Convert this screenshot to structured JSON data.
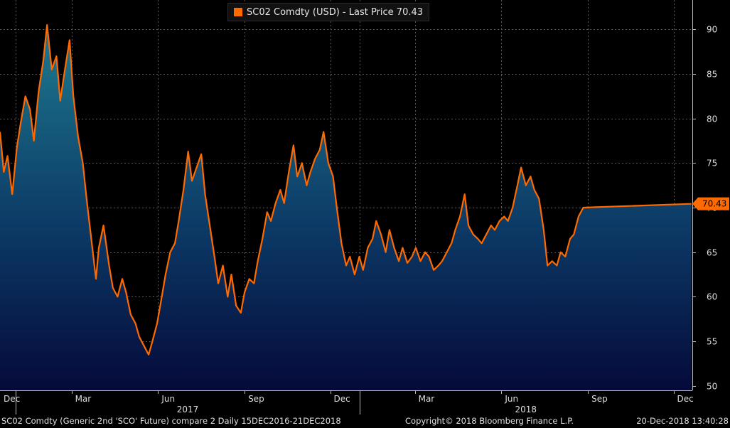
{
  "legend": {
    "label": "SC02 Comdty (USD)  -  Last Price 70.43",
    "color": "#ff6a00"
  },
  "last_price_tag": "70.43",
  "footer": {
    "left": "SC02 Comdty (Generic 2nd 'SCO' Future) compare 2  Daily 15DEC2016-21DEC2018",
    "center": "Copyright© 2018 Bloomberg Finance L.P.",
    "right": "20-Dec-2018 13:40:28"
  },
  "chart_data": {
    "type": "area",
    "title": "",
    "xlabel": "",
    "ylabel": "",
    "ylim": [
      49.5,
      93.3
    ],
    "yticks": [
      50,
      55,
      60,
      65,
      70,
      75,
      80,
      85,
      90
    ],
    "y_axis_side": "right",
    "grid": true,
    "x_tick_labels": [
      "Dec",
      "Mar",
      "Jun",
      "Sep",
      "Dec",
      "Mar",
      "Jun",
      "Sep",
      "Dec"
    ],
    "x_year_labels": [
      "2017",
      "2018"
    ],
    "x_range": [
      "2016-12-15",
      "2018-12-21"
    ],
    "series": [
      {
        "name": "SC02 Comdty (USD)",
        "line_color": "#ff6a00",
        "fill_top_color": "#1e7a90",
        "fill_bottom_color": "#050a3a",
        "points": [
          [
            "2016-12-15",
            78.5
          ],
          [
            "2016-12-19",
            74.0
          ],
          [
            "2016-12-23",
            75.8
          ],
          [
            "2016-12-28",
            71.5
          ],
          [
            "2017-01-02",
            76.8
          ],
          [
            "2017-01-06",
            79.5
          ],
          [
            "2017-01-11",
            82.5
          ],
          [
            "2017-01-16",
            81.0
          ],
          [
            "2017-01-20",
            77.5
          ],
          [
            "2017-01-25",
            83.0
          ],
          [
            "2017-01-30",
            86.5
          ],
          [
            "2017-02-03",
            90.5
          ],
          [
            "2017-02-08",
            85.5
          ],
          [
            "2017-02-13",
            87.0
          ],
          [
            "2017-02-17",
            82.0
          ],
          [
            "2017-02-22",
            85.5
          ],
          [
            "2017-02-27",
            88.8
          ],
          [
            "2017-03-03",
            82.5
          ],
          [
            "2017-03-08",
            78.0
          ],
          [
            "2017-03-13",
            75.0
          ],
          [
            "2017-03-17",
            71.0
          ],
          [
            "2017-03-22",
            66.5
          ],
          [
            "2017-03-27",
            62.0
          ],
          [
            "2017-03-30",
            65.5
          ],
          [
            "2017-04-04",
            68.0
          ],
          [
            "2017-04-10",
            63.5
          ],
          [
            "2017-04-14",
            61.0
          ],
          [
            "2017-04-19",
            60.0
          ],
          [
            "2017-04-24",
            62.0
          ],
          [
            "2017-04-28",
            60.5
          ],
          [
            "2017-05-03",
            58.0
          ],
          [
            "2017-05-08",
            57.0
          ],
          [
            "2017-05-12",
            55.5
          ],
          [
            "2017-05-17",
            54.5
          ],
          [
            "2017-05-22",
            53.5
          ],
          [
            "2017-05-26",
            55.0
          ],
          [
            "2017-05-31",
            57.0
          ],
          [
            "2017-06-05",
            60.0
          ],
          [
            "2017-06-09",
            62.5
          ],
          [
            "2017-06-14",
            65.0
          ],
          [
            "2017-06-19",
            66.0
          ],
          [
            "2017-06-23",
            68.5
          ],
          [
            "2017-06-28",
            72.0
          ],
          [
            "2017-07-03",
            76.3
          ],
          [
            "2017-07-07",
            73.0
          ],
          [
            "2017-07-12",
            74.5
          ],
          [
            "2017-07-17",
            76.0
          ],
          [
            "2017-07-21",
            71.5
          ],
          [
            "2017-07-26",
            68.0
          ],
          [
            "2017-07-31",
            64.5
          ],
          [
            "2017-08-04",
            61.5
          ],
          [
            "2017-08-09",
            63.5
          ],
          [
            "2017-08-14",
            60.0
          ],
          [
            "2017-08-18",
            62.5
          ],
          [
            "2017-08-23",
            59.0
          ],
          [
            "2017-08-28",
            58.2
          ],
          [
            "2017-09-01",
            60.5
          ],
          [
            "2017-09-06",
            62.0
          ],
          [
            "2017-09-11",
            61.5
          ],
          [
            "2017-09-15",
            64.0
          ],
          [
            "2017-09-20",
            66.5
          ],
          [
            "2017-09-25",
            69.5
          ],
          [
            "2017-09-29",
            68.5
          ],
          [
            "2017-10-04",
            70.5
          ],
          [
            "2017-10-09",
            72.0
          ],
          [
            "2017-10-13",
            70.5
          ],
          [
            "2017-10-18",
            74.0
          ],
          [
            "2017-10-23",
            77.0
          ],
          [
            "2017-10-27",
            73.5
          ],
          [
            "2017-11-01",
            75.0
          ],
          [
            "2017-11-06",
            72.5
          ],
          [
            "2017-11-10",
            74.0
          ],
          [
            "2017-11-15",
            75.5
          ],
          [
            "2017-11-20",
            76.5
          ],
          [
            "2017-11-24",
            78.5
          ],
          [
            "2017-11-29",
            75.0
          ],
          [
            "2017-12-04",
            73.5
          ],
          [
            "2017-12-08",
            70.0
          ],
          [
            "2017-12-13",
            66.0
          ],
          [
            "2017-12-18",
            63.5
          ],
          [
            "2017-12-22",
            64.5
          ],
          [
            "2017-12-27",
            62.5
          ],
          [
            "2018-01-01",
            64.5
          ],
          [
            "2018-01-05",
            63.0
          ],
          [
            "2018-01-10",
            65.5
          ],
          [
            "2018-01-15",
            66.5
          ],
          [
            "2018-01-19",
            68.5
          ],
          [
            "2018-01-24",
            67.0
          ],
          [
            "2018-01-29",
            65.0
          ],
          [
            "2018-02-02",
            67.5
          ],
          [
            "2018-02-07",
            65.5
          ],
          [
            "2018-02-12",
            64.0
          ],
          [
            "2018-02-16",
            65.5
          ],
          [
            "2018-02-21",
            63.8
          ],
          [
            "2018-02-26",
            64.5
          ],
          [
            "2018-03-02",
            65.5
          ],
          [
            "2018-03-07",
            64.0
          ],
          [
            "2018-03-12",
            65.0
          ],
          [
            "2018-03-16",
            64.5
          ],
          [
            "2018-03-21",
            63.0
          ],
          [
            "2018-03-26",
            63.5
          ],
          [
            "2018-03-30",
            64.0
          ],
          [
            "2018-04-04",
            65.0
          ],
          [
            "2018-04-09",
            66.0
          ],
          [
            "2018-04-13",
            67.5
          ],
          [
            "2018-04-18",
            69.0
          ],
          [
            "2018-04-23",
            71.5
          ],
          [
            "2018-04-27",
            68.0
          ],
          [
            "2018-05-02",
            67.0
          ],
          [
            "2018-05-07",
            66.5
          ],
          [
            "2018-05-11",
            66.0
          ],
          [
            "2018-05-16",
            67.0
          ],
          [
            "2018-05-21",
            68.0
          ],
          [
            "2018-05-25",
            67.5
          ],
          [
            "2018-05-30",
            68.5
          ],
          [
            "2018-06-04",
            69.0
          ],
          [
            "2018-06-08",
            68.5
          ],
          [
            "2018-06-13",
            70.0
          ],
          [
            "2018-06-18",
            72.5
          ],
          [
            "2018-06-22",
            74.5
          ],
          [
            "2018-06-27",
            72.5
          ],
          [
            "2018-07-02",
            73.5
          ],
          [
            "2018-07-06",
            72.0
          ],
          [
            "2018-07-11",
            71.0
          ],
          [
            "2018-07-16",
            67.5
          ],
          [
            "2018-07-20",
            63.5
          ],
          [
            "2018-07-25",
            64.0
          ],
          [
            "2018-07-30",
            63.5
          ],
          [
            "2018-08-03",
            65.0
          ],
          [
            "2018-08-08",
            64.5
          ],
          [
            "2018-08-13",
            66.5
          ],
          [
            "2018-08-17",
            67.0
          ],
          [
            "2018-08-22",
            69.0
          ],
          [
            "2018-08-27",
            70.0
          ]
        ]
      }
    ],
    "last_value": 70.43
  }
}
